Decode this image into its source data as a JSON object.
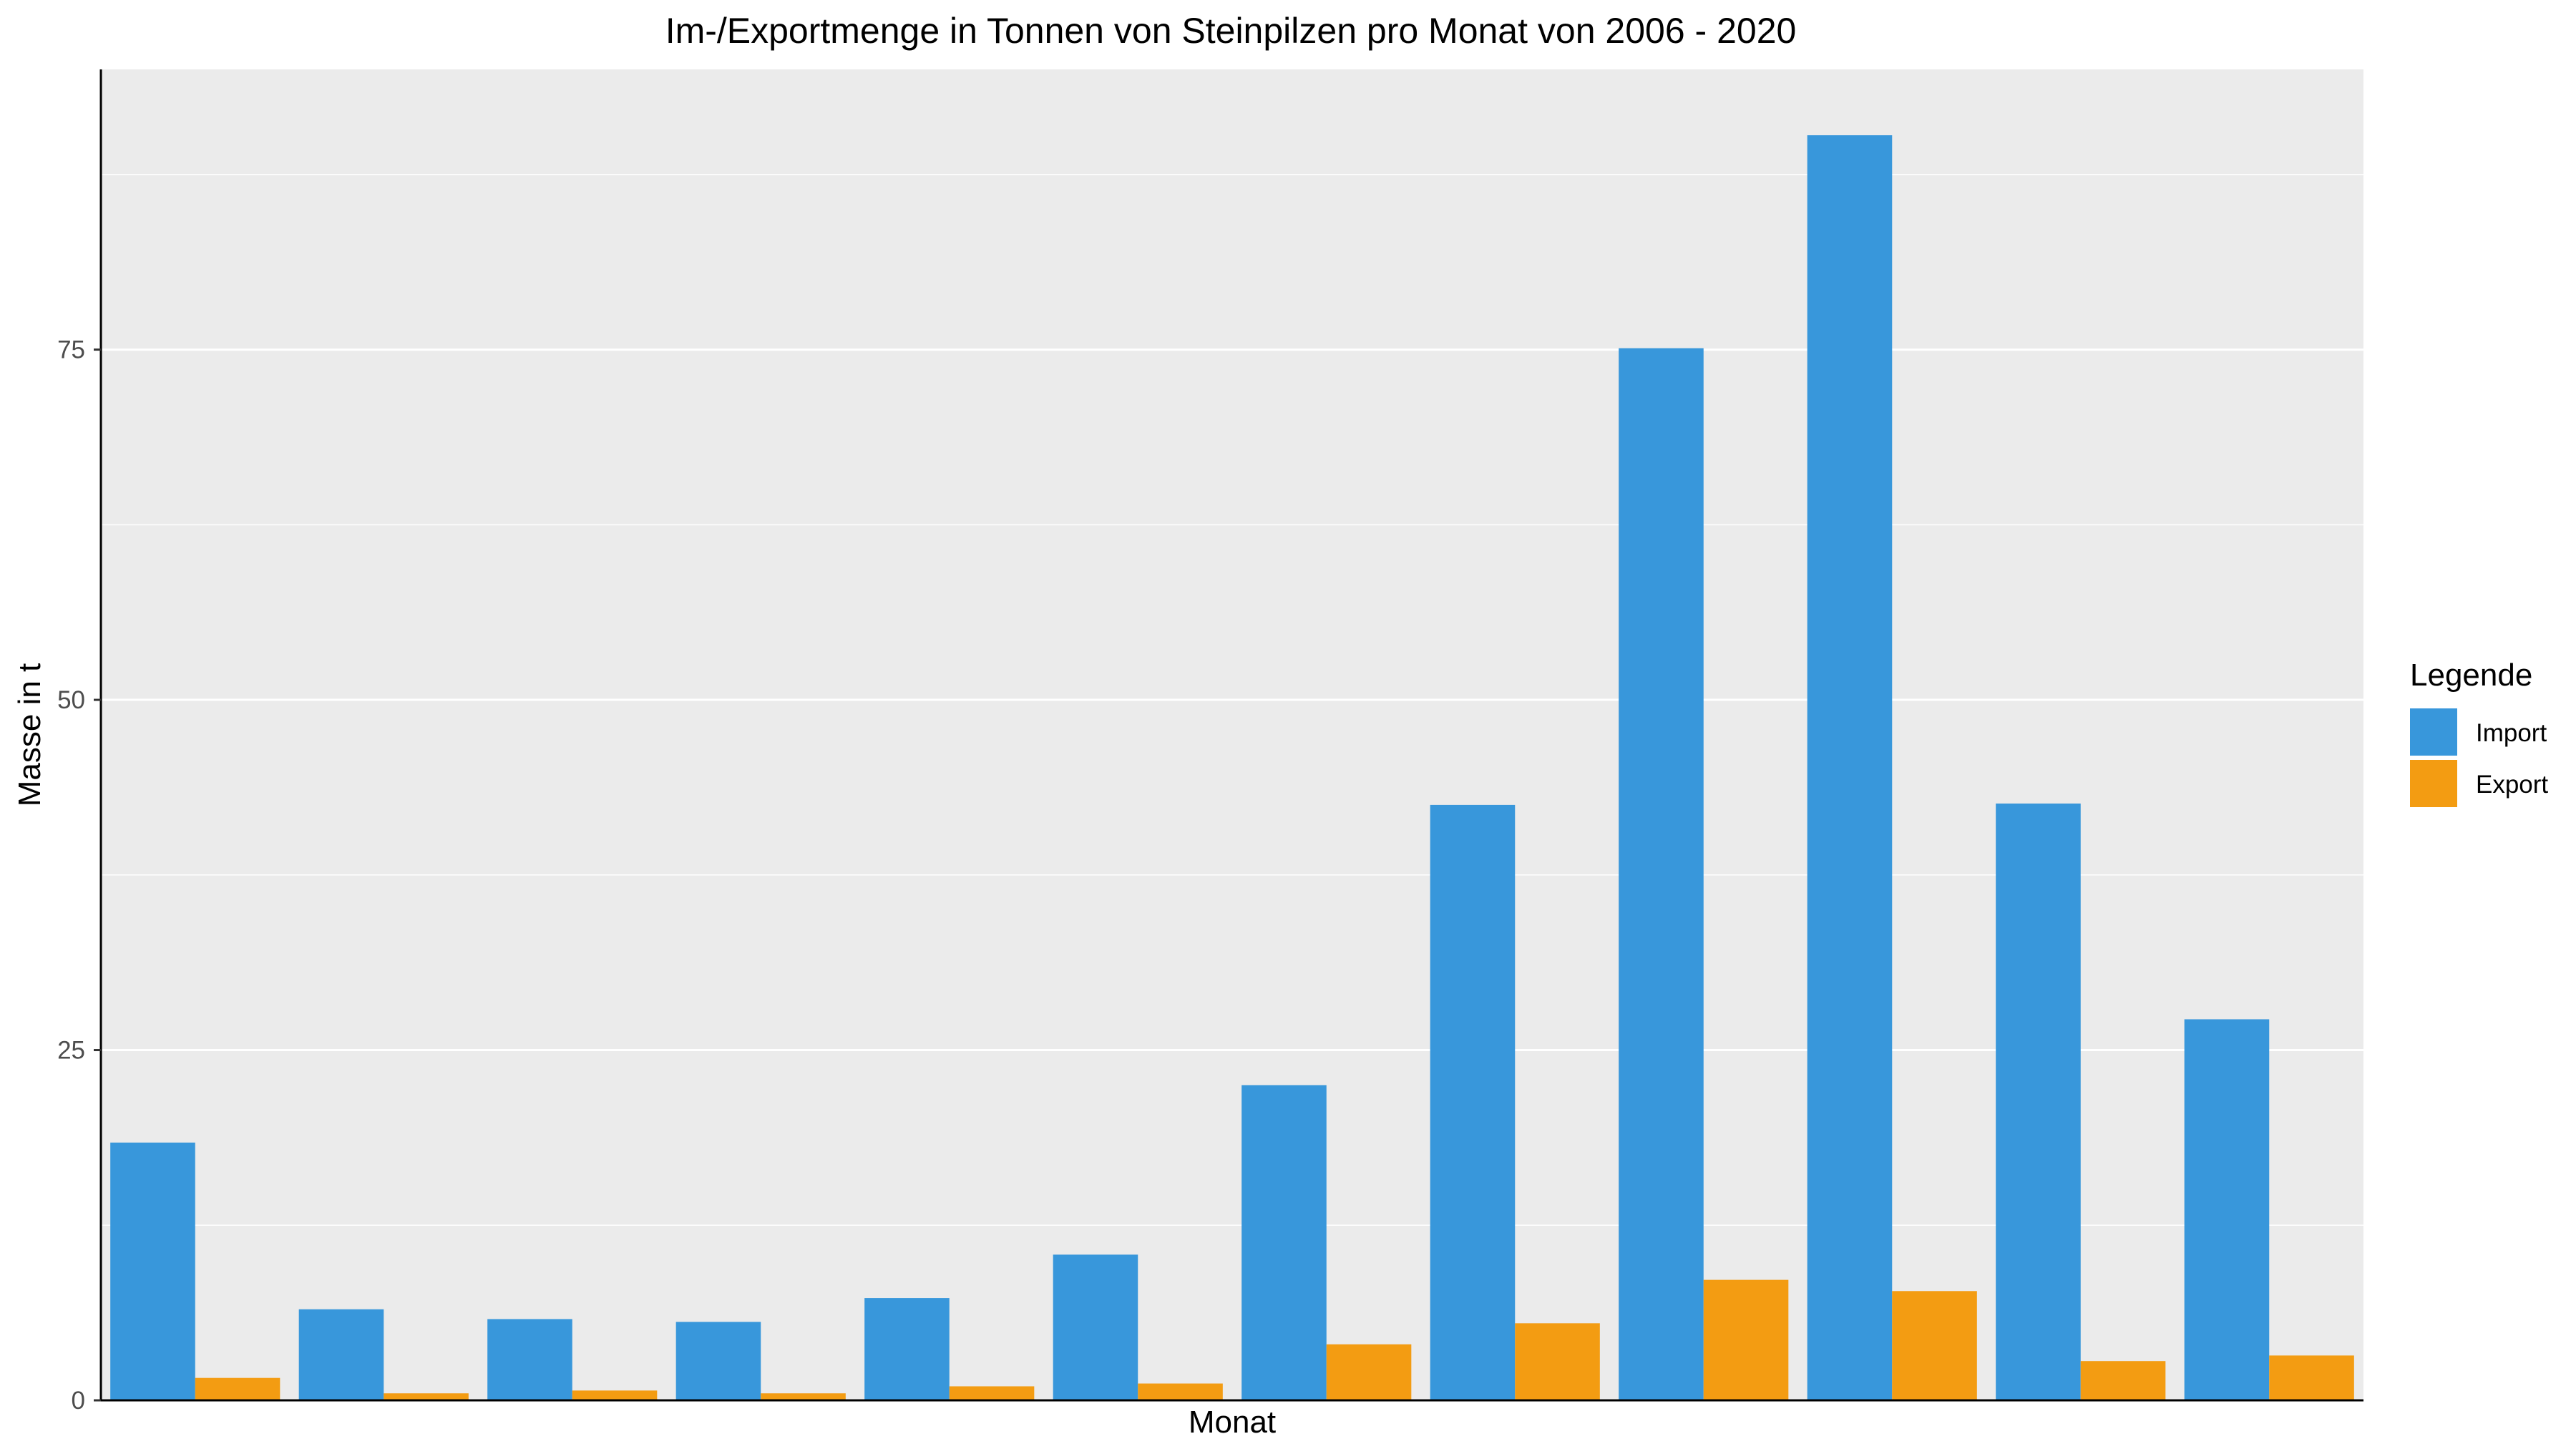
{
  "chart_data": {
    "type": "bar",
    "title": "Im-/Exportmenge in Tonnen von Steinpilzen pro Monat von 2006 - 2020",
    "xlabel": "Monat",
    "ylabel": "Masse in t",
    "ylim": [
      0,
      95
    ],
    "yticks": [
      0,
      25,
      50,
      75
    ],
    "grid": true,
    "legend_position": "right",
    "legend_title": "Legende",
    "categories": [
      "",
      "",
      "",
      "",
      "",
      "",
      "",
      "",
      "",
      "",
      "",
      ""
    ],
    "series": [
      {
        "name": "Import",
        "color": "#3897DB",
        "values": [
          18.4,
          6.5,
          5.8,
          5.6,
          7.3,
          10.4,
          22.5,
          42.5,
          75.1,
          90.3,
          42.6,
          27.2
        ]
      },
      {
        "name": "Export",
        "color": "#F39C12",
        "values": [
          1.6,
          0.5,
          0.7,
          0.5,
          1.0,
          1.2,
          4.0,
          5.5,
          8.6,
          7.8,
          2.8,
          3.2
        ]
      }
    ]
  }
}
